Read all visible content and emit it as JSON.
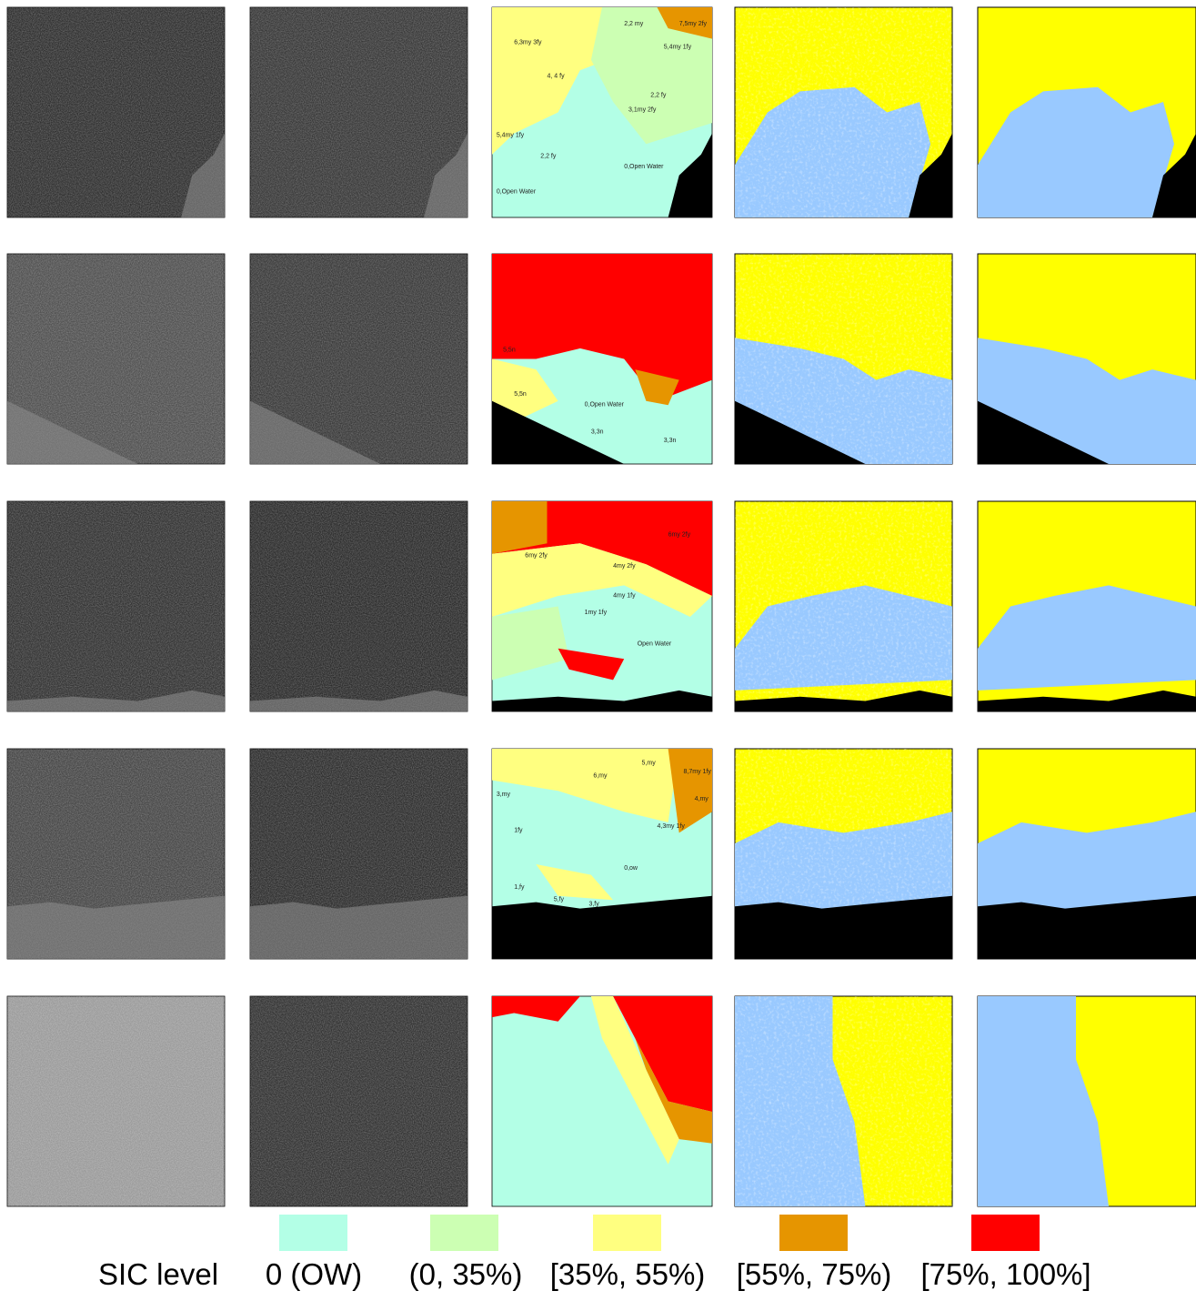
{
  "legend": {
    "title": "SIC level",
    "items": [
      {
        "label": "0 (OW)",
        "color": "#b3ffe6"
      },
      {
        "label": "(0, 35%)",
        "color": "#ccffb3"
      },
      {
        "label": "[35%, 55%)",
        "color": "#ffff80"
      },
      {
        "label": "[55%, 75%)",
        "color": "#e69500"
      },
      {
        "label": "[75%, 100%]",
        "color": "#ff0000"
      }
    ]
  },
  "rows": [
    {
      "labels": [
        "2,2 my",
        "7,5my 2fy",
        "6,3my 3fy",
        "5,4my 1fy",
        "4, 4 fy",
        "2,2 fy",
        "3,1my 2fy",
        "5,4my 1fy",
        "2,2 fy",
        "0,Open Water",
        "0,Open Water"
      ]
    },
    {
      "labels": [
        "5,5n",
        "5,5n",
        "0,Open Water",
        "3,3n",
        "3,3n"
      ]
    },
    {
      "labels": [
        "6my 2fy",
        "6my 2fy",
        "4my 2fy",
        "4my 1fy",
        "1my 1fy",
        "Open Water"
      ]
    },
    {
      "labels": [
        "6,my",
        "5,my",
        "8,7my 1fy",
        "4,my",
        "3,my",
        "4,3my 1fy",
        "1fy",
        "0,ow",
        "1,fy",
        "5,fy",
        "3,fy"
      ]
    },
    {
      "labels": []
    }
  ]
}
